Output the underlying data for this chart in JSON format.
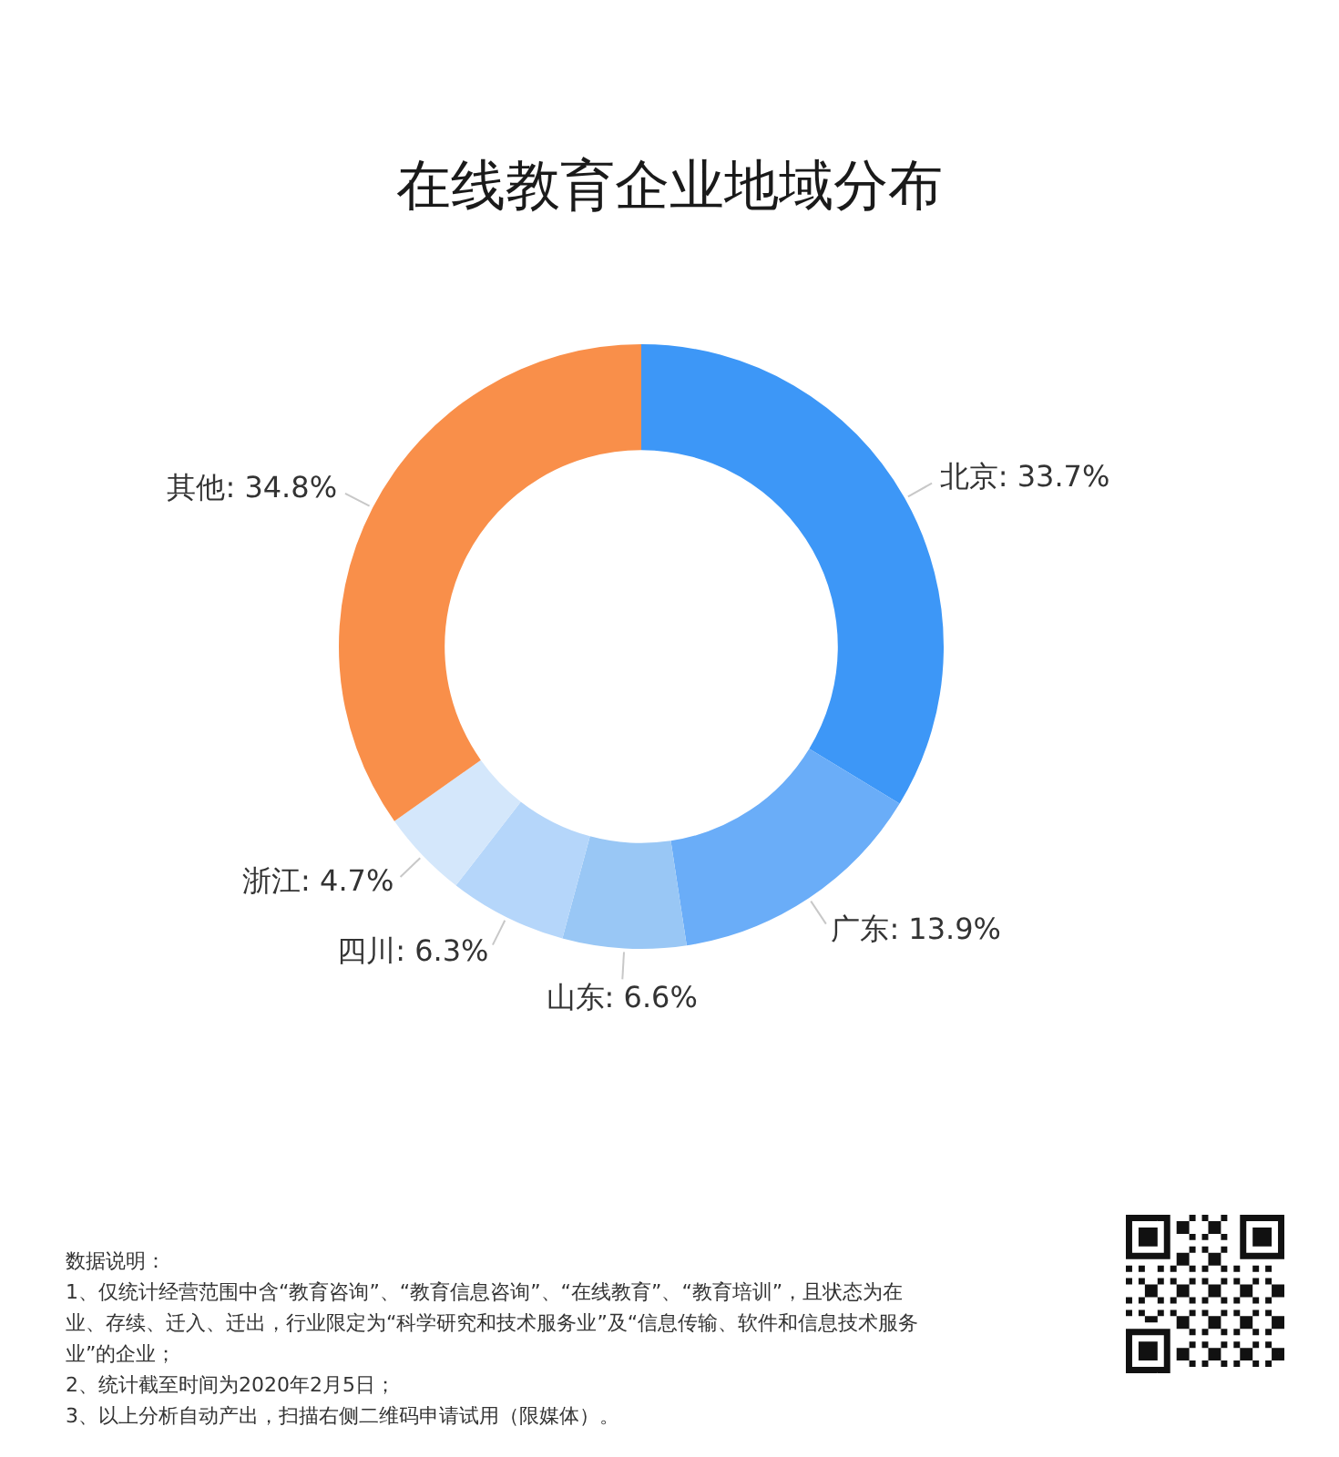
{
  "chart_data": {
    "type": "donut",
    "title": "在线教育企业地域分布",
    "categories": [
      "北京",
      "广东",
      "山东",
      "四川",
      "浙江",
      "其他"
    ],
    "values": [
      33.7,
      13.9,
      6.6,
      6.3,
      4.7,
      34.8
    ],
    "colors": [
      "#3d97f7",
      "#6aadf8",
      "#99c7f5",
      "#b5d6fa",
      "#d4e7fb",
      "#f98f4a"
    ],
    "value_labels": [
      "33.7%",
      "13.9%",
      "6.6%",
      "6.3%",
      "4.7%",
      "34.8%"
    ],
    "annotations": [
      "数据说明：",
      "1、仅统计经营范围中含“教育咨询”、“教育信息咨询”、“在线教育”、“教育培训”，且状态为在业、存续、迁入、迁出，行业限定为“科学研究和技术服务业”及“信息传输、软件和信息技术服务业”的企业；",
      "2、统计截至时间为2020年2月5日；",
      "3、以上分析自动产出，扫描右侧二维码申请试用（限媒体）。"
    ]
  }
}
